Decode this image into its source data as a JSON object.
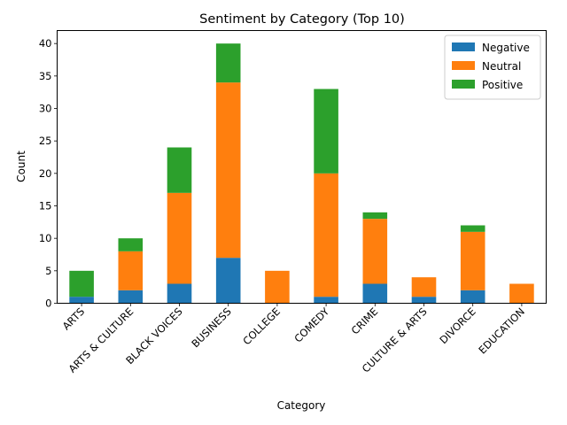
{
  "chart_data": {
    "type": "bar",
    "stacked": true,
    "title": "Sentiment by Category (Top 10)",
    "xlabel": "Category",
    "ylabel": "Count",
    "ylim": [
      0,
      42
    ],
    "yticks": [
      0,
      5,
      10,
      15,
      20,
      25,
      30,
      35,
      40
    ],
    "grid": false,
    "legend_position": "top-right",
    "categories": [
      "ARTS",
      "ARTS & CULTURE",
      "BLACK VOICES",
      "BUSINESS",
      "COLLEGE",
      "COMEDY",
      "CRIME",
      "CULTURE & ARTS",
      "DIVORCE",
      "EDUCATION"
    ],
    "series": [
      {
        "name": "Negative",
        "color": "#1f77b4",
        "values": [
          1,
          2,
          3,
          7,
          0,
          1,
          3,
          1,
          2,
          0
        ]
      },
      {
        "name": "Neutral",
        "color": "#ff7f0e",
        "values": [
          0,
          6,
          14,
          27,
          5,
          19,
          10,
          3,
          9,
          3
        ]
      },
      {
        "name": "Positive",
        "color": "#2ca02c",
        "values": [
          4,
          2,
          7,
          6,
          0,
          13,
          1,
          0,
          1,
          0
        ]
      }
    ]
  }
}
